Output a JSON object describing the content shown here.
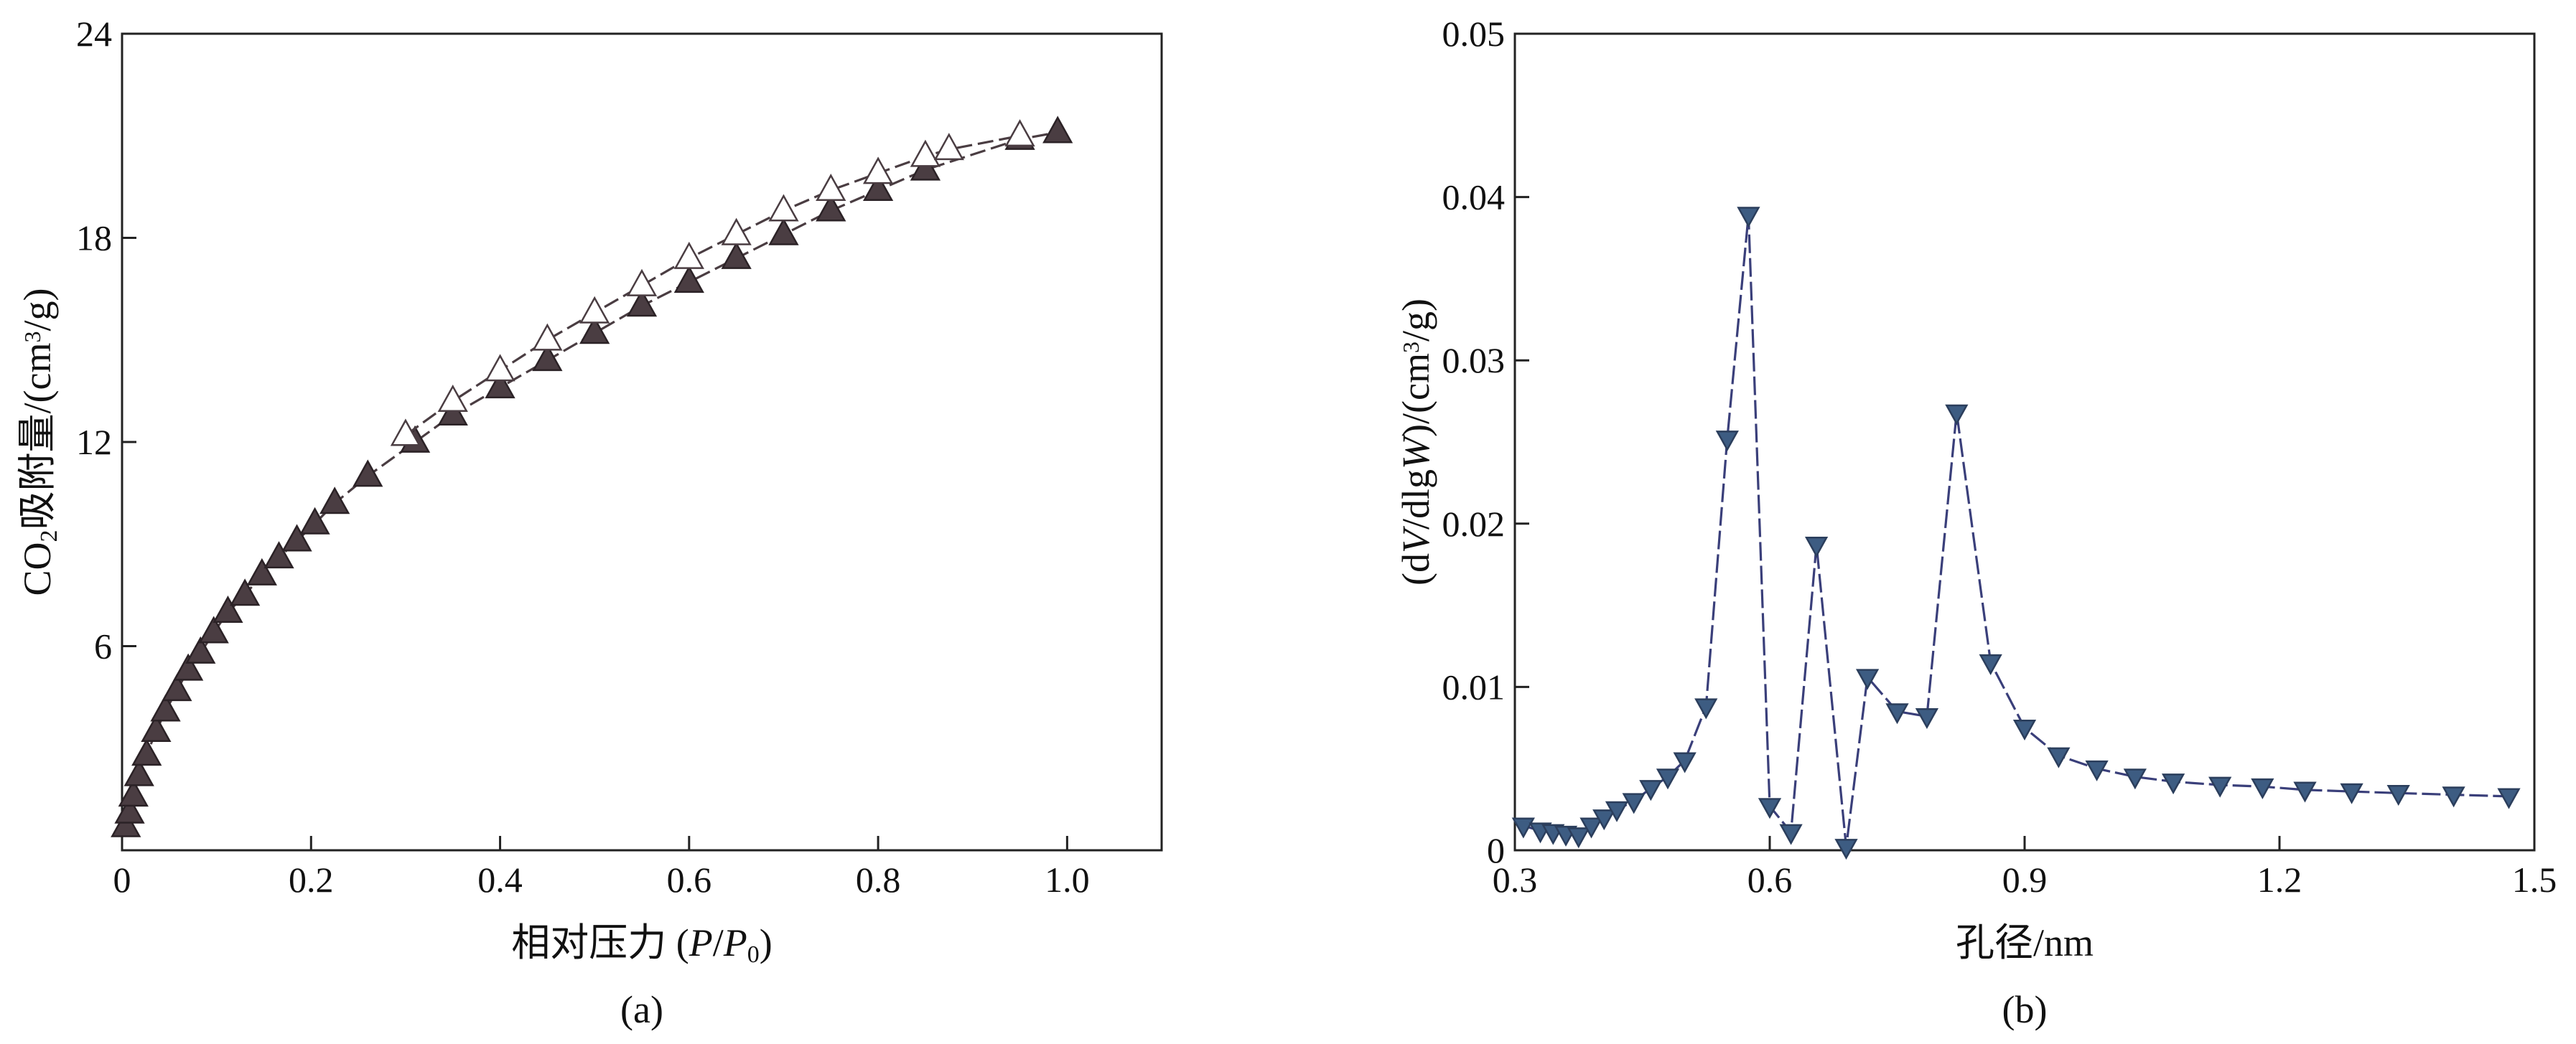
{
  "chart_data": [
    {
      "type": "scatter",
      "panel_label": "(a)",
      "xlabel_parts": [
        "相对压力 (",
        "P",
        "/",
        "P",
        "0",
        ")"
      ],
      "ylabel_parts": [
        "CO",
        "2",
        "吸附量/(cm",
        "3",
        "/g)"
      ],
      "xlim": [
        0,
        1.1
      ],
      "ylim": [
        0,
        24
      ],
      "x_ticks": [
        0,
        0.2,
        0.4,
        0.6,
        0.8,
        1.0
      ],
      "x_tick_labels": [
        "0",
        "0.2",
        "0.4",
        "0.6",
        "0.8",
        "1.0"
      ],
      "y_ticks": [
        6,
        12,
        18,
        24
      ],
      "y_tick_labels": [
        "6",
        "12",
        "18",
        "24"
      ],
      "grid": false,
      "legend": "none",
      "series": [
        {
          "marker": "filled-triangle-up",
          "color": "#4a3d42",
          "x": [
            0.004,
            0.008,
            0.012,
            0.018,
            0.026,
            0.036,
            0.046,
            0.058,
            0.07,
            0.083,
            0.097,
            0.112,
            0.13,
            0.148,
            0.166,
            0.185,
            0.204,
            0.225,
            0.26,
            0.31,
            0.35,
            0.4,
            0.45,
            0.5,
            0.55,
            0.6,
            0.65,
            0.7,
            0.75,
            0.8,
            0.85,
            0.95,
            0.99
          ],
          "y": [
            0.7,
            1.1,
            1.6,
            2.2,
            2.8,
            3.5,
            4.1,
            4.7,
            5.3,
            5.8,
            6.4,
            7.0,
            7.5,
            8.1,
            8.6,
            9.1,
            9.6,
            10.2,
            11.0,
            12.0,
            12.8,
            13.6,
            14.4,
            15.2,
            16.0,
            16.7,
            17.4,
            18.1,
            18.8,
            19.4,
            20.0,
            20.9,
            21.1
          ]
        },
        {
          "marker": "open-triangle-up",
          "color": "#4a3d42",
          "x": [
            0.3,
            0.35,
            0.4,
            0.45,
            0.5,
            0.55,
            0.6,
            0.65,
            0.7,
            0.75,
            0.8,
            0.85,
            0.875,
            0.95
          ],
          "y": [
            12.2,
            13.2,
            14.1,
            15.0,
            15.8,
            16.6,
            17.4,
            18.1,
            18.8,
            19.4,
            19.9,
            20.4,
            20.6,
            21.0
          ]
        }
      ]
    },
    {
      "type": "line",
      "panel_label": "(b)",
      "xlabel_parts": [
        "孔径/nm"
      ],
      "ylabel_parts": [
        "(d",
        "V",
        "/dlg",
        "W",
        ")/(cm",
        "3",
        "/g)"
      ],
      "xlim": [
        0.3,
        1.5
      ],
      "ylim": [
        0,
        0.05
      ],
      "x_ticks": [
        0.3,
        0.6,
        0.9,
        1.2,
        1.5
      ],
      "x_tick_labels": [
        "0.3",
        "0.6",
        "0.9",
        "1.2",
        "1.5"
      ],
      "y_ticks": [
        0,
        0.01,
        0.02,
        0.03,
        0.04,
        0.05
      ],
      "y_tick_labels": [
        "0",
        "0.01",
        "0.02",
        "0.03",
        "0.04",
        "0.05"
      ],
      "grid": false,
      "legend": "none",
      "series": [
        {
          "marker": "filled-triangle-down",
          "color": "#3d5c82",
          "line_color": "#3a3f7a",
          "x": [
            0.31,
            0.33,
            0.345,
            0.36,
            0.375,
            0.39,
            0.405,
            0.42,
            0.44,
            0.46,
            0.48,
            0.5,
            0.525,
            0.55,
            0.575,
            0.6,
            0.625,
            0.655,
            0.69,
            0.715,
            0.75,
            0.785,
            0.82,
            0.86,
            0.9,
            0.94,
            0.985,
            1.03,
            1.075,
            1.13,
            1.18,
            1.23,
            1.285,
            1.34,
            1.405,
            1.47
          ],
          "y": [
            0.0015,
            0.0012,
            0.0011,
            0.001,
            0.0009,
            0.0015,
            0.002,
            0.0025,
            0.003,
            0.0038,
            0.0045,
            0.0055,
            0.0088,
            0.0252,
            0.0389,
            0.0027,
            0.0011,
            0.0187,
            0.0002,
            0.0106,
            0.0085,
            0.0082,
            0.0268,
            0.0115,
            0.0075,
            0.0058,
            0.005,
            0.0045,
            0.0042,
            0.004,
            0.0039,
            0.0037,
            0.0036,
            0.0035,
            0.0034,
            0.0033
          ]
        }
      ]
    }
  ]
}
